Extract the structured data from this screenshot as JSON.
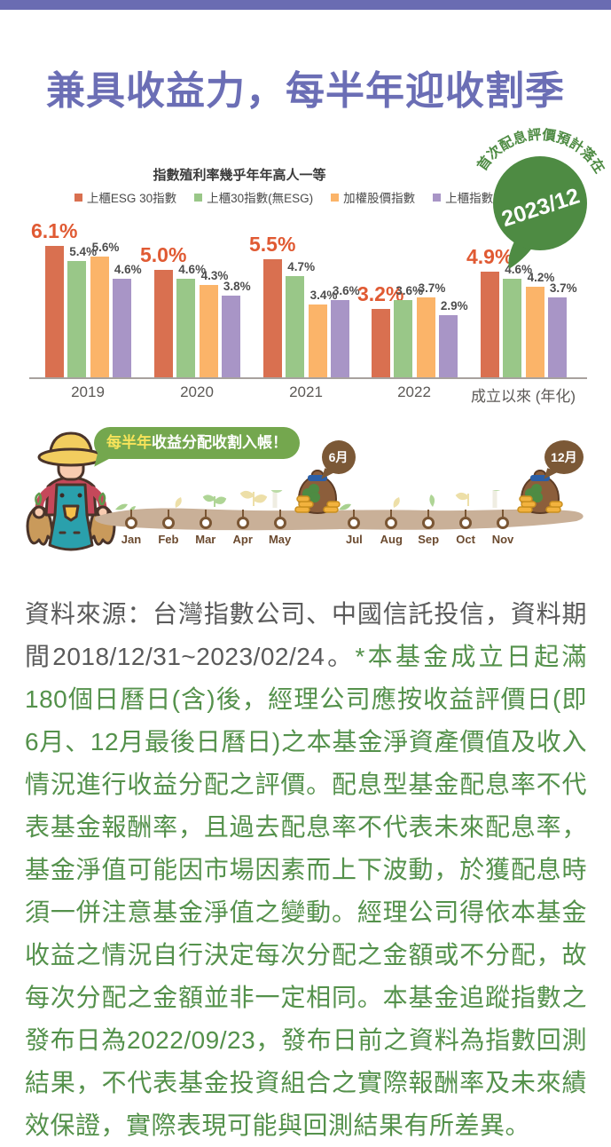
{
  "header": {
    "title": "兼具收益力，每半年迎收割季"
  },
  "accent_colors": {
    "top_bar": "#6A6CB2",
    "title_purple": "#6B6EB5",
    "highlight_label": "#E05A33",
    "badge_green": "#4E8B43",
    "bubble_green": "#74A74E",
    "ground_tan": "#C9B098",
    "timeline_brown": "#7A5634"
  },
  "chart_data": {
    "type": "bar",
    "title": "指數殖利率幾乎年年高人一等",
    "categories": [
      "2019",
      "2020",
      "2021",
      "2022",
      "成立以來 (年化)"
    ],
    "series": [
      {
        "name": "上櫃ESG 30指數",
        "color": "#D97050",
        "values": [
          6.1,
          5.0,
          5.5,
          3.2,
          4.9
        ]
      },
      {
        "name": "上櫃30指數(無ESG)",
        "color": "#99C788",
        "values": [
          5.4,
          4.6,
          4.7,
          3.6,
          4.6
        ]
      },
      {
        "name": "加權股價指數",
        "color": "#FBB469",
        "values": [
          5.6,
          4.3,
          3.4,
          3.7,
          4.2
        ]
      },
      {
        "name": "上櫃指數",
        "color": "#A895C6",
        "values": [
          4.6,
          3.8,
          3.6,
          2.9,
          3.7
        ]
      }
    ],
    "value_suffix": "%",
    "highlighted_series": 0,
    "ylim": [
      0,
      7
    ],
    "grid": false,
    "legend_position": "top",
    "badge": {
      "arc_text": "首次配息評價預計落在",
      "date": "2023/12"
    }
  },
  "timeline": {
    "bubble_highlight": "每半年",
    "bubble_text": "收益分配收割入帳！",
    "months": [
      "Jan",
      "Feb",
      "Mar",
      "Apr",
      "May",
      "Jul",
      "Aug",
      "Sep",
      "Oct",
      "Nov"
    ],
    "payouts": [
      {
        "label": "6月"
      },
      {
        "label": "12月"
      }
    ]
  },
  "footnote": {
    "source": "資料來源：台灣指數公司、中國信託投信，資料期間2018/12/31~2023/02/24。",
    "disclaimer": "*本基金成立日起滿180個日曆日(含)後，經理公司應按收益評價日(即6月、12月最後日曆日)之本基金淨資產價值及收入情況進行收益分配之評價。配息型基金配息率不代表基金報酬率，且過去配息率不代表未來配息率，基金淨值可能因市場因素而上下波動，於獲配息時須一併注意基金淨值之變動。經理公司得依本基金收益之情況自行決定每次分配之金額或不分配，故每次分配之金額並非一定相同。本基金追蹤指數之發布日為2022/09/23，發布日前之資料為指數回測結果，不代表基金投資組合之實際報酬率及未來績效保證，實際表現可能與回測結果有所差異。"
  }
}
